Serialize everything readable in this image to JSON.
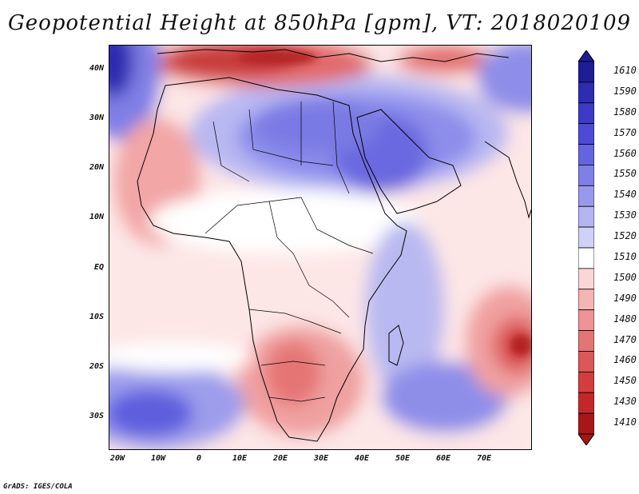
{
  "title": "Geopotential Height at 850hPa [gpm], VT: 2018020109",
  "credit": "GrADS: IGES/COLA",
  "map": {
    "projection": "lat-lon",
    "lon_range": [
      -25,
      80
    ],
    "lat_range": [
      -37,
      45
    ],
    "lat_labels": [
      "40N",
      "30N",
      "20N",
      "10N",
      "EQ",
      "10S",
      "20S",
      "30S"
    ],
    "lon_labels": [
      "20W",
      "10W",
      "0",
      "10E",
      "20E",
      "30E",
      "40E",
      "50E",
      "60E",
      "70E"
    ],
    "field": "Geopotential height at 850 hPa (gpm)"
  },
  "colorbar": {
    "levels": [
      "1610",
      "1590",
      "1580",
      "1570",
      "1560",
      "1550",
      "1540",
      "1530",
      "1520",
      "1510",
      "1500",
      "1490",
      "1480",
      "1470",
      "1460",
      "1450",
      "1430",
      "1410"
    ],
    "colors": [
      "#1e1c96",
      "#2e2cb0",
      "#3c3ac6",
      "#4d4bd6",
      "#6564e0",
      "#7f7fe6",
      "#9999ec",
      "#b5b5f2",
      "#d0d0f8",
      "#ffffff",
      "#fbd6d6",
      "#f5b5b5",
      "#ee9494",
      "#e57575",
      "#dc5858",
      "#d23e3e",
      "#c32828",
      "#a81616"
    ]
  }
}
